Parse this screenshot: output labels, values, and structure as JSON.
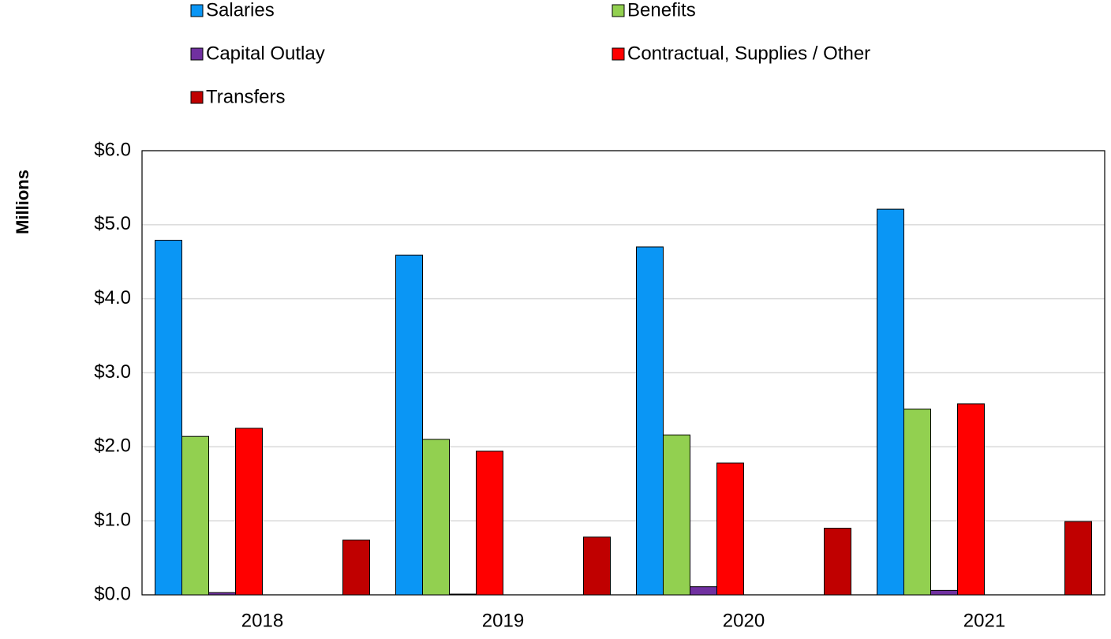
{
  "chart_data": {
    "type": "bar",
    "y_label": "Millions",
    "categories": [
      "2018",
      "2019",
      "2020",
      "2021"
    ],
    "series": [
      {
        "name": "Salaries",
        "color": "#0a96f5",
        "values": [
          4.79,
          4.59,
          4.7,
          5.21
        ]
      },
      {
        "name": "Benefits",
        "color": "#92d050",
        "values": [
          2.14,
          2.1,
          2.16,
          2.51
        ]
      },
      {
        "name": "Capital Outlay",
        "color": "#7030a0",
        "values": [
          0.03,
          0.01,
          0.11,
          0.06
        ]
      },
      {
        "name": "Contractual, Supplies / Other",
        "color": "#ff0000",
        "values": [
          2.25,
          1.94,
          1.78,
          2.58
        ]
      },
      {
        "name": "Transfers",
        "color": "#c00000",
        "values": [
          0.74,
          0.78,
          0.9,
          0.99
        ]
      }
    ],
    "ylim": [
      0,
      6
    ],
    "yticks": [
      {
        "value": 0,
        "label": "$0.0"
      },
      {
        "value": 1,
        "label": "$1.0"
      },
      {
        "value": 2,
        "label": "$2.0"
      },
      {
        "value": 3,
        "label": "$3.0"
      },
      {
        "value": 4,
        "label": "$4.0"
      },
      {
        "value": 5,
        "label": "$5.0"
      },
      {
        "value": 6,
        "label": "$6.0"
      }
    ],
    "grid": true,
    "legend": "top"
  }
}
